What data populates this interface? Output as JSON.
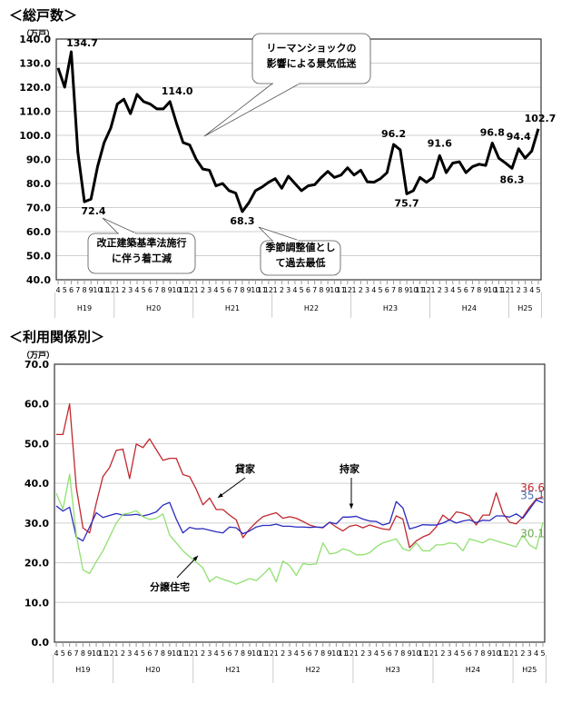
{
  "chart_data": [
    {
      "type": "line",
      "title": "＜総戸数＞",
      "ylabel": "（万戸）",
      "ylim": [
        40,
        140
      ],
      "yticks": [
        "40.0",
        "50.0",
        "60.0",
        "70.0",
        "80.0",
        "90.0",
        "100.0",
        "110.0",
        "120.0",
        "130.0",
        "140.0"
      ],
      "grid": true,
      "eras": [
        {
          "label": "H19",
          "months": [
            4,
            5,
            6,
            7,
            8,
            9,
            10,
            11,
            12
          ]
        },
        {
          "label": "H20",
          "months": [
            1,
            2,
            3,
            4,
            5,
            6,
            7,
            8,
            9,
            10,
            11,
            12
          ]
        },
        {
          "label": "H21",
          "months": [
            1,
            2,
            3,
            4,
            5,
            6,
            7,
            8,
            9,
            10,
            11,
            12
          ]
        },
        {
          "label": "H22",
          "months": [
            1,
            2,
            3,
            4,
            5,
            6,
            7,
            8,
            9,
            10,
            11,
            12
          ]
        },
        {
          "label": "H23",
          "months": [
            1,
            2,
            3,
            4,
            5,
            6,
            7,
            8,
            9,
            10,
            11,
            12
          ]
        },
        {
          "label": "H24",
          "months": [
            1,
            2,
            3,
            4,
            5,
            6,
            7,
            8,
            9,
            10,
            11,
            12
          ]
        },
        {
          "label": "H25",
          "months": [
            1,
            2,
            3,
            4,
            5
          ]
        }
      ],
      "series": [
        {
          "color": "#000000",
          "values": [
            128,
            120,
            134.7,
            93,
            72.4,
            73.5,
            87,
            97,
            103,
            113,
            115,
            109,
            117,
            114,
            113,
            111,
            111,
            114.0,
            105,
            97,
            96,
            90,
            86,
            85.5,
            79,
            80,
            77,
            76,
            68.3,
            72,
            77,
            78.5,
            80.5,
            82,
            78,
            83,
            80,
            77,
            79,
            79.5,
            82.5,
            85,
            82.5,
            83.5,
            86.5,
            83.5,
            85.5,
            80.7,
            80.5,
            82,
            84.5,
            96.2,
            94,
            75.7,
            77,
            82.5,
            80.5,
            82.5,
            91.6,
            84.5,
            88.5,
            89,
            84.5,
            87,
            88,
            87.5,
            96.8,
            90.5,
            88.5,
            86.3,
            94.4,
            90.5,
            93.5,
            102.7
          ]
        }
      ],
      "data_labels": [
        {
          "i": 2,
          "text": "134.7"
        },
        {
          "i": 4,
          "text": "72.4"
        },
        {
          "i": 17,
          "text": "114.0"
        },
        {
          "i": 28,
          "text": "68.3"
        },
        {
          "i": 51,
          "text": "96.2"
        },
        {
          "i": 53,
          "text": "75.7"
        },
        {
          "i": 58,
          "text": "91.6"
        },
        {
          "i": 66,
          "text": "96.8"
        },
        {
          "i": 69,
          "text": "86.3"
        },
        {
          "i": 70,
          "text": "94.4"
        },
        {
          "i": 73,
          "text": "102.7"
        }
      ],
      "annotations": [
        {
          "lines": [
            "リーマンショックの",
            "影響による景気低迷"
          ]
        },
        {
          "lines": [
            "改正建築基準法施行",
            "に伴う着工減"
          ]
        },
        {
          "lines": [
            "季節調整値とし",
            "て過去最低"
          ]
        }
      ]
    },
    {
      "type": "line",
      "title": "＜利用関係別＞",
      "ylabel": "（万戸）",
      "ylim": [
        0,
        70
      ],
      "yticks": [
        "0.0",
        "10.0",
        "20.0",
        "30.0",
        "40.0",
        "50.0",
        "60.0",
        "70.0"
      ],
      "grid": true,
      "series": [
        {
          "name": "貸家",
          "color": "#c0282d",
          "end_label": "36.6",
          "values": [
            52.3,
            52.3,
            60,
            39,
            28.8,
            27.5,
            35,
            41.7,
            44,
            48.3,
            48.6,
            41.2,
            49.9,
            49,
            51.2,
            48.5,
            45.8,
            46.3,
            46.3,
            42.2,
            41.7,
            38.5,
            34.6,
            36.3,
            33.4,
            33.4,
            32,
            30.8,
            26.3,
            28.5,
            30.2,
            31.6,
            32.1,
            32.6,
            31.2,
            31.6,
            31.2,
            30.4,
            29.5,
            29,
            28.8,
            30.2,
            29,
            28,
            29.2,
            29.5,
            28.8,
            29.5,
            29,
            28.5,
            28.3,
            31.8,
            31,
            23.8,
            25.5,
            26.5,
            27.2,
            29,
            32,
            30.7,
            32.8,
            32.5,
            31.8,
            29.5,
            32,
            32,
            37.6,
            32.5,
            30.2,
            29.8,
            31.5,
            34,
            36,
            36.6
          ]
        },
        {
          "name": "持家",
          "color": "#2b2bc0",
          "end_label": "35.1",
          "values": [
            34.3,
            33,
            34,
            26.5,
            25.5,
            29,
            32.6,
            31.4,
            31.9,
            32.4,
            32,
            32,
            32.2,
            31.8,
            32.2,
            32.8,
            34.5,
            35.2,
            31,
            27.5,
            28.9,
            28.5,
            28.6,
            28.2,
            27.8,
            27.5,
            29,
            28.8,
            27.3,
            28,
            29,
            29.4,
            29.4,
            29.7,
            29.2,
            29.2,
            29,
            29,
            28.9,
            29,
            28.9,
            30.2,
            29.8,
            31.5,
            31.5,
            31.7,
            31,
            30.5,
            30.4,
            29.5,
            30,
            35.4,
            33.8,
            28.5,
            29,
            29.6,
            29.5,
            29.5,
            30,
            30.8,
            30,
            30.5,
            30.8,
            30.1,
            30.7,
            30.6,
            31.8,
            31.8,
            31.5,
            32.3,
            31.2,
            33.5,
            35.8,
            35.1
          ]
        },
        {
          "name": "分譲住宅",
          "color": "#90e070",
          "end_label": "30.1",
          "values": [
            37.5,
            33.5,
            42.3,
            27,
            18.2,
            17.3,
            20.3,
            23,
            26.5,
            30,
            32.2,
            32.5,
            33.1,
            31.6,
            30.9,
            31.2,
            32.3,
            27,
            25,
            23,
            21.5,
            20.2,
            18.7,
            15.2,
            16.5,
            15.8,
            15.3,
            14.6,
            15.3,
            16,
            15.5,
            17,
            18.7,
            15.2,
            20.4,
            19.3,
            16.8,
            19.8,
            19.5,
            19.7,
            25,
            22.2,
            22.5,
            23.5,
            23,
            22,
            22,
            22.5,
            24,
            25,
            25.5,
            26,
            23.5,
            23,
            25,
            23,
            23,
            24.5,
            24.5,
            25,
            24.8,
            23,
            26,
            25.5,
            25,
            26,
            25.5,
            25,
            24.5,
            24,
            27,
            24.5,
            23.5,
            30.1
          ]
        }
      ],
      "end_label_colors": [
        "#c0282d",
        "#4a6fb5",
        "#6aa84f"
      ]
    }
  ]
}
